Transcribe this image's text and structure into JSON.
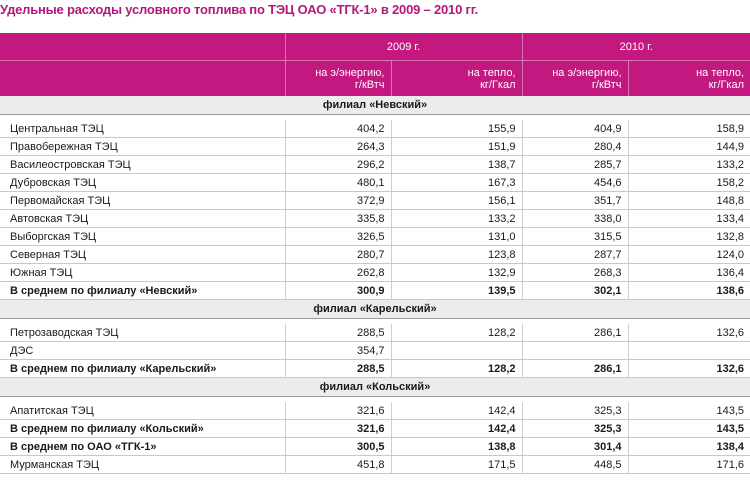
{
  "title": "Удельные расходы условного топлива по ТЭЦ ОАО «ТГК-1» в 2009 – 2010 гг.",
  "colors": {
    "header_bg": "#c2187f",
    "title": "#b5177a",
    "section_bg": "#ececec"
  },
  "header": {
    "year_2009": "2009 г.",
    "year_2010": "2010 г.",
    "units": [
      "на э/энергию,\nг/кВтч",
      "на тепло,\nкг/Гкал",
      "на э/энергию,\nг/кВтч",
      "на тепло,\nкг/Гкал"
    ]
  },
  "rows": [
    {
      "kind": "section",
      "label": "филиал «Невский»"
    },
    {
      "kind": "gap"
    },
    {
      "kind": "data",
      "cells": [
        "Центральная ТЭЦ",
        "404,2",
        "155,9",
        "404,9",
        "158,9"
      ]
    },
    {
      "kind": "data",
      "cells": [
        "Правобережная ТЭЦ",
        "264,3",
        "151,9",
        "280,4",
        "144,9"
      ]
    },
    {
      "kind": "data",
      "cells": [
        "Василеостровская ТЭЦ",
        "296,2",
        "138,7",
        "285,7",
        "133,2"
      ]
    },
    {
      "kind": "data",
      "cells": [
        "Дубровская ТЭЦ",
        "480,1",
        "167,3",
        "454,6",
        "158,2"
      ]
    },
    {
      "kind": "data",
      "cells": [
        "Первомайская ТЭЦ",
        "372,9",
        "156,1",
        "351,7",
        "148,8"
      ]
    },
    {
      "kind": "data",
      "cells": [
        "Автовская ТЭЦ",
        "335,8",
        "133,2",
        "338,0",
        "133,4"
      ]
    },
    {
      "kind": "data",
      "cells": [
        "Выборгская ТЭЦ",
        "326,5",
        "131,0",
        "315,5",
        "132,8"
      ]
    },
    {
      "kind": "data",
      "cells": [
        "Северная ТЭЦ",
        "280,7",
        "123,8",
        "287,7",
        "124,0"
      ]
    },
    {
      "kind": "data",
      "cells": [
        "Южная ТЭЦ",
        "262,8",
        "132,9",
        "268,3",
        "136,4"
      ]
    },
    {
      "kind": "bold",
      "cells": [
        "В среднем по филиалу «Невский»",
        "300,9",
        "139,5",
        "302,1",
        "138,6"
      ]
    },
    {
      "kind": "section",
      "label": "филиал «Карельский»"
    },
    {
      "kind": "gap"
    },
    {
      "kind": "data",
      "cells": [
        "Петрозаводская ТЭЦ",
        "288,5",
        "128,2",
        "286,1",
        "132,6"
      ]
    },
    {
      "kind": "data",
      "cells": [
        "ДЭС",
        "354,7",
        "",
        "",
        ""
      ]
    },
    {
      "kind": "bold",
      "cells": [
        "В среднем по филиалу «Карельский»",
        "288,5",
        "128,2",
        "286,1",
        "132,6"
      ]
    },
    {
      "kind": "section",
      "label": "филиал «Кольский»"
    },
    {
      "kind": "gap"
    },
    {
      "kind": "data",
      "cells": [
        "Апатитская ТЭЦ",
        "321,6",
        "142,4",
        "325,3",
        "143,5"
      ]
    },
    {
      "kind": "bold",
      "cells": [
        "В среднем по филиалу «Кольский»",
        "321,6",
        "142,4",
        "325,3",
        "143,5"
      ]
    },
    {
      "kind": "bold",
      "cells": [
        "В среднем по ОАО «ТГК-1»",
        "300,5",
        "138,8",
        "301,4",
        "138,4"
      ]
    },
    {
      "kind": "data",
      "cells": [
        "Мурманская ТЭЦ",
        "451,8",
        "171,5",
        "448,5",
        "171,6"
      ]
    }
  ]
}
